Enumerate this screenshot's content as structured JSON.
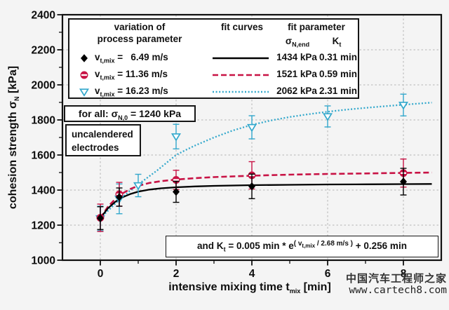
{
  "axes": {
    "ylabel": {
      "pre": "cohesion strength σ",
      "sub": "N",
      "post": "  [kPa]"
    },
    "xlabel": {
      "pre": "intensive mixing time t",
      "sub": "mix",
      "post": "  [min]"
    }
  },
  "legend": {
    "header_col1_line1": "variation of",
    "header_col1_line2": "process parameter",
    "header_col2": "fit curves",
    "header_col3": "fit parameter",
    "sigma_header": {
      "pre": "σ",
      "sub": "N,end"
    },
    "kt_header": {
      "pre": "K",
      "sub": "t"
    },
    "rows": [
      {
        "v_pre": "v",
        "v_sub": "t,mix",
        "v_val": " =   6.49 m/s",
        "sigma": "1434 kPa",
        "kt": "0.31 min"
      },
      {
        "v_pre": "v",
        "v_sub": "t,mix",
        "v_val": " = 11.36 m/s",
        "sigma": "1521 kPa",
        "kt": "0.59 min"
      },
      {
        "v_pre": "v",
        "v_sub": "t,mix",
        "v_val": " = 16.23 m/s",
        "sigma": "2062 kPa",
        "kt": "2.31 min"
      }
    ]
  },
  "annotations": {
    "for_all": {
      "pre": "for all: σ",
      "sub": "N,0",
      "post": " = 1240 kPa"
    },
    "sample_line1": "uncalendered",
    "sample_line2": "electrodes",
    "equation": {
      "p1": "and K",
      "s1": "t",
      "p2": " = 0.005 min * e",
      "sup_pre": "( v",
      "sup_sub": "t,mix",
      "sup_post": " / 2.68 m/s )",
      "p3": " + 0.256 min"
    }
  },
  "watermark": {
    "line1": "中国汽车工程师之家",
    "line2": "www.cartech8.com"
  },
  "chart_data": {
    "type": "scatter",
    "title": "",
    "xlabel": "intensive mixing time t_mix [min]",
    "ylabel": "cohesion strength σ_N [kPa]",
    "xlim": [
      -1,
      9
    ],
    "ylim": [
      1000,
      2400
    ],
    "xticks": [
      0,
      2,
      4,
      6,
      8
    ],
    "xminor": [
      1,
      3,
      5,
      7
    ],
    "yticks": [
      1000,
      1200,
      1400,
      1600,
      1800,
      2000,
      2200,
      2400
    ],
    "yminor": [
      1100,
      1300,
      1500,
      1700,
      1900,
      2100,
      2300
    ],
    "grid": "dashed-gray-at-major-ticks",
    "legend_position": "top-left-inside",
    "sigma_n0_kpa": 1240,
    "style": {
      "grid_color": "#b5b5b5",
      "axis_color": "#111111"
    },
    "series": [
      {
        "name": "v_t,mix = 16.23 m/s",
        "color": "#33a8cc",
        "marker": "triangle-down-open",
        "line": "dotted",
        "fit": {
          "sigma_end": "2062 kPa",
          "kt": "2.31 min"
        },
        "points": [
          {
            "x": 0,
            "y": 1238,
            "e": 70
          },
          {
            "x": 0.5,
            "y": 1350,
            "e": 85
          },
          {
            "x": 1,
            "y": 1426,
            "e": 64
          },
          {
            "x": 2,
            "y": 1705,
            "e": 70
          },
          {
            "x": 4,
            "y": 1758,
            "e": 66
          },
          {
            "x": 6,
            "y": 1820,
            "e": 60
          },
          {
            "x": 8,
            "y": 1885,
            "e": 62
          }
        ],
        "curve": [
          [
            0,
            1240
          ],
          [
            0.25,
            1292
          ],
          [
            0.5,
            1345
          ],
          [
            0.75,
            1390
          ],
          [
            1,
            1432
          ],
          [
            1.25,
            1472
          ],
          [
            1.5,
            1512
          ],
          [
            1.75,
            1556
          ],
          [
            2,
            1600
          ],
          [
            2.25,
            1628
          ],
          [
            2.5,
            1654
          ],
          [
            3,
            1700
          ],
          [
            3.5,
            1740
          ],
          [
            4,
            1772
          ],
          [
            4.5,
            1797
          ],
          [
            5,
            1817
          ],
          [
            5.5,
            1833
          ],
          [
            6,
            1847
          ],
          [
            6.5,
            1859
          ],
          [
            7,
            1869
          ],
          [
            7.5,
            1878
          ],
          [
            8,
            1887
          ],
          [
            8.75,
            1899
          ]
        ]
      },
      {
        "name": "v_t,mix = 11.36 m/s",
        "color": "#c81345",
        "marker": "circle-stripe",
        "line": "dashed",
        "fit": {
          "sigma_end": "1521 kPa",
          "kt": "0.59 min"
        },
        "points": [
          {
            "x": 0,
            "y": 1242,
            "e": 78
          },
          {
            "x": 0.5,
            "y": 1376,
            "e": 68
          },
          {
            "x": 2,
            "y": 1458,
            "e": 55
          },
          {
            "x": 4,
            "y": 1484,
            "e": 78
          },
          {
            "x": 8,
            "y": 1497,
            "e": 80
          }
        ],
        "curve": [
          [
            0,
            1240
          ],
          [
            0.2,
            1305
          ],
          [
            0.4,
            1350
          ],
          [
            0.6,
            1383
          ],
          [
            0.8,
            1407
          ],
          [
            1,
            1424
          ],
          [
            1.3,
            1441
          ],
          [
            1.6,
            1451
          ],
          [
            2,
            1460
          ],
          [
            2.5,
            1468
          ],
          [
            3,
            1474
          ],
          [
            4,
            1482
          ],
          [
            5,
            1488
          ],
          [
            6,
            1492
          ],
          [
            7,
            1495
          ],
          [
            8,
            1498
          ],
          [
            8.75,
            1500
          ]
        ]
      },
      {
        "name": "v_t,mix = 6.49 m/s",
        "color": "#000000",
        "marker": "diamond-filled",
        "line": "solid",
        "fit": {
          "sigma_end": "1434 kPa",
          "kt": "0.31 min"
        },
        "points": [
          {
            "x": 0,
            "y": 1240,
            "e": 65
          },
          {
            "x": 0.5,
            "y": 1360,
            "e": 52
          },
          {
            "x": 2,
            "y": 1390,
            "e": 60
          },
          {
            "x": 4,
            "y": 1421,
            "e": 70
          },
          {
            "x": 8,
            "y": 1448,
            "e": 76
          }
        ],
        "curve": [
          [
            0,
            1240
          ],
          [
            0.2,
            1296
          ],
          [
            0.4,
            1334
          ],
          [
            0.6,
            1360
          ],
          [
            0.8,
            1378
          ],
          [
            1,
            1391
          ],
          [
            1.3,
            1403
          ],
          [
            1.6,
            1410
          ],
          [
            2,
            1416
          ],
          [
            2.5,
            1421
          ],
          [
            3,
            1424
          ],
          [
            4,
            1428
          ],
          [
            5,
            1430
          ],
          [
            6,
            1432
          ],
          [
            7,
            1433
          ],
          [
            8,
            1434
          ],
          [
            8.75,
            1435
          ]
        ]
      }
    ]
  }
}
